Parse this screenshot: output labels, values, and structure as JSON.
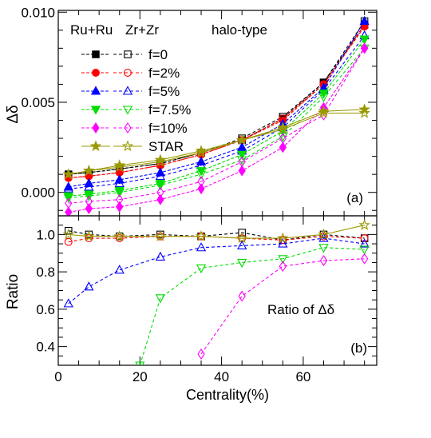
{
  "chart_data": [
    {
      "id": "a",
      "type": "line",
      "panel_label": "(a)",
      "annotation": "halo-type",
      "ylabel": "Δδ",
      "xlim": [
        0,
        78
      ],
      "ylim": [
        -0.0013,
        0.0101
      ],
      "yticks": [
        0.0,
        0.005,
        0.01
      ],
      "ytick_labels": [
        "0.000",
        "0.005",
        "0.010"
      ],
      "legend_headers": [
        "Ru+Ru",
        "Zr+Zr"
      ],
      "legend_labels": [
        "f=0",
        "f=2%",
        "f=5%",
        "f=7.5%",
        "f=10%",
        "STAR"
      ],
      "x": [
        2.5,
        7.5,
        15,
        25,
        35,
        45,
        55,
        65,
        75
      ],
      "series": [
        {
          "name": "f=0",
          "group": "Ru+Ru",
          "color": "#000000",
          "marker": "square",
          "filled": true,
          "values": [
            0.001,
            0.0011,
            0.0013,
            0.0016,
            0.0022,
            0.0029,
            0.0041,
            0.0061,
            0.0093
          ]
        },
        {
          "name": "f=0",
          "group": "Zr+Zr",
          "color": "#000000",
          "marker": "square",
          "filled": false,
          "values": [
            0.001,
            0.0011,
            0.0013,
            0.0016,
            0.0022,
            0.003,
            0.0042,
            0.0061,
            0.0095
          ]
        },
        {
          "name": "f=2%",
          "group": "Ru+Ru",
          "color": "#ff0000",
          "marker": "circle",
          "filled": true,
          "values": [
            0.0008,
            0.0009,
            0.0011,
            0.0015,
            0.0021,
            0.0029,
            0.004,
            0.006,
            0.0092
          ]
        },
        {
          "name": "f=2%",
          "group": "Zr+Zr",
          "color": "#ff0000",
          "marker": "circle",
          "filled": false,
          "values": [
            0.0008,
            0.0009,
            0.0011,
            0.0015,
            0.0021,
            0.0029,
            0.0041,
            0.006,
            0.0093
          ]
        },
        {
          "name": "f=5%",
          "group": "Ru+Ru",
          "color": "#0000ff",
          "marker": "triangle",
          "filled": true,
          "values": [
            0.0003,
            0.0005,
            0.0007,
            0.0011,
            0.0017,
            0.0025,
            0.0038,
            0.0058,
            0.0095
          ]
        },
        {
          "name": "f=5%",
          "group": "Zr+Zr",
          "color": "#0000ff",
          "marker": "triangle",
          "filled": false,
          "values": [
            0.0002,
            0.0003,
            0.0005,
            0.0009,
            0.0015,
            0.0023,
            0.0036,
            0.0057,
            0.0087
          ]
        },
        {
          "name": "f=7.5%",
          "group": "Ru+Ru",
          "color": "#00dd00",
          "marker": "triangle-down",
          "filled": true,
          "values": [
            -0.0002,
            -0.0001,
            0.0001,
            0.0005,
            0.0012,
            0.0021,
            0.0034,
            0.0055,
            0.0085
          ]
        },
        {
          "name": "f=7.5%",
          "group": "Zr+Zr",
          "color": "#00dd00",
          "marker": "triangle-down",
          "filled": false,
          "values": [
            -0.0003,
            -0.0002,
            0.0,
            0.0004,
            0.001,
            0.0018,
            0.0031,
            0.0053,
            0.008
          ]
        },
        {
          "name": "f=10%",
          "group": "Ru+Ru",
          "color": "#ff00ff",
          "marker": "diamond",
          "filled": true,
          "values": [
            -0.0011,
            -0.0009,
            -0.0008,
            -0.0004,
            0.0002,
            0.0012,
            0.0025,
            0.0047,
            0.008
          ]
        },
        {
          "name": "f=10%",
          "group": "Zr+Zr",
          "color": "#ff00ff",
          "marker": "diamond",
          "filled": false,
          "values": [
            -0.0006,
            -0.0005,
            -0.0004,
            0.0,
            0.0006,
            0.0017,
            0.003,
            0.0043,
            0.008
          ]
        },
        {
          "name": "STAR",
          "group": "Ru+Ru",
          "color": "#999900",
          "marker": "star",
          "filled": true,
          "values": [
            0.001,
            0.0012,
            0.0015,
            0.0018,
            0.0023,
            0.0029,
            0.0036,
            0.0045,
            0.0046
          ]
        },
        {
          "name": "STAR",
          "group": "Zr+Zr",
          "color": "#999900",
          "marker": "star",
          "filled": false,
          "values": [
            0.001,
            0.0012,
            0.0014,
            0.0017,
            0.0022,
            0.0029,
            0.0035,
            0.0044,
            0.0044
          ]
        }
      ]
    },
    {
      "id": "b",
      "type": "line",
      "panel_label": "(b)",
      "annotation": "Ratio of Δδ",
      "ylabel": "Ratio",
      "xlabel": "Centrality(%)",
      "xlim": [
        0,
        78
      ],
      "ylim": [
        0.3,
        1.1
      ],
      "xticks": [
        0,
        20,
        40,
        60
      ],
      "xtick_labels": [
        "0",
        "20",
        "40",
        "60"
      ],
      "yticks": [
        0.4,
        0.6,
        0.8,
        1.0
      ],
      "ytick_labels": [
        "0.4",
        "0.6",
        "0.8",
        "1.0"
      ],
      "series": [
        {
          "name": "f=0",
          "color": "#000000",
          "marker": "square",
          "filled": false,
          "x": [
            2.5,
            7.5,
            15,
            25,
            35,
            45,
            55,
            65,
            75
          ],
          "values": [
            1.02,
            1.0,
            0.99,
            1.0,
            0.99,
            1.01,
            0.97,
            1.0,
            0.98
          ]
        },
        {
          "name": "f=2%",
          "color": "#ff0000",
          "marker": "circle",
          "filled": false,
          "x": [
            2.5,
            7.5,
            15,
            25,
            35,
            45,
            55,
            65,
            75
          ],
          "values": [
            0.96,
            0.98,
            0.98,
            0.99,
            0.99,
            0.98,
            0.97,
            0.99,
            0.98
          ]
        },
        {
          "name": "f=5%",
          "color": "#0000ff",
          "marker": "triangle",
          "filled": false,
          "x": [
            2.5,
            7.5,
            15,
            25,
            35,
            45,
            55,
            65,
            75
          ],
          "values": [
            0.63,
            0.72,
            0.81,
            0.88,
            0.93,
            0.94,
            0.95,
            0.98,
            0.95
          ]
        },
        {
          "name": "f=7.5%",
          "color": "#00dd00",
          "marker": "triangle-down",
          "filled": false,
          "x": [
            20,
            25,
            35,
            45,
            55,
            65,
            75
          ],
          "values": [
            0.3,
            0.66,
            0.82,
            0.85,
            0.87,
            0.93,
            0.92
          ]
        },
        {
          "name": "f=10%",
          "color": "#ff00ff",
          "marker": "diamond",
          "filled": false,
          "x": [
            35,
            45,
            55,
            65,
            75
          ],
          "values": [
            0.36,
            0.67,
            0.83,
            0.86,
            0.87
          ]
        },
        {
          "name": "STAR",
          "color": "#999900",
          "marker": "star",
          "filled": false,
          "x": [
            2.5,
            7.5,
            15,
            25,
            35,
            45,
            55,
            65,
            75
          ],
          "values": [
            1.0,
            0.99,
            0.99,
            0.99,
            0.99,
            0.98,
            0.98,
            1.0,
            1.05
          ]
        }
      ]
    }
  ]
}
